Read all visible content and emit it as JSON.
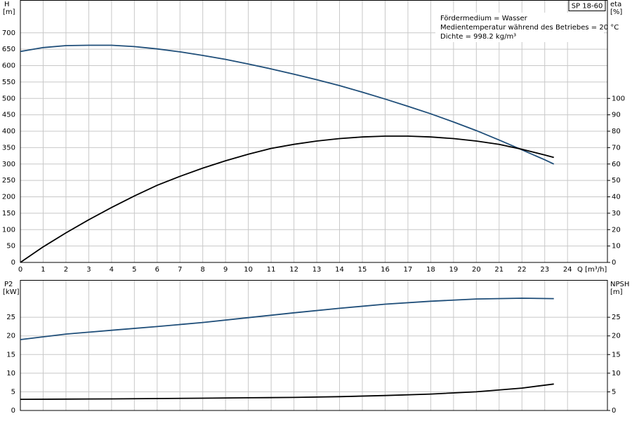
{
  "chart_data": [
    {
      "type": "line",
      "model": "SP 18-60",
      "annotations": [
        "Fördermedium = Wasser",
        "Medientemperatur während des Betriebes = 20 °C",
        "Dichte = 998.2 kg/m³"
      ],
      "xlabel": "Q [m³/h]",
      "ylabel": "H",
      "yunit": "[m]",
      "y2label": "eta",
      "y2unit": "[%]",
      "x": [
        0,
        1,
        2,
        3,
        4,
        5,
        6,
        7,
        8,
        9,
        10,
        11,
        12,
        13,
        14,
        15,
        16,
        17,
        18,
        19,
        20,
        21,
        22,
        23,
        23.4
      ],
      "xlim": [
        0,
        25.75
      ],
      "xticks": [
        0,
        1,
        2,
        3,
        4,
        5,
        6,
        7,
        8,
        9,
        10,
        11,
        12,
        13,
        14,
        15,
        16,
        17,
        18,
        19,
        20,
        21,
        22,
        23,
        24
      ],
      "ylim": [
        0,
        800
      ],
      "yticks": [
        0,
        50,
        100,
        150,
        200,
        250,
        300,
        350,
        400,
        450,
        500,
        550,
        600,
        650,
        700
      ],
      "y2lim": [
        0,
        160
      ],
      "y2ticks": [
        0,
        10,
        20,
        30,
        40,
        50,
        60,
        70,
        80,
        90,
        100
      ],
      "grid": true,
      "series": [
        {
          "color": "#1f4e79",
          "values": [
            643,
            655,
            661,
            662,
            662,
            658,
            651,
            642,
            631,
            619,
            605,
            590,
            574,
            557,
            539,
            519,
            498,
            476,
            453,
            428,
            402,
            373,
            343,
            313,
            300
          ]
        },
        {
          "color": "#000000",
          "axis": "y2",
          "values": [
            0,
            9.5,
            18,
            26,
            33.5,
            40.5,
            47,
            52.5,
            57.5,
            62,
            66,
            69.5,
            72,
            74,
            75.5,
            76.5,
            77,
            77,
            76.5,
            75.5,
            74,
            72,
            69,
            65.5,
            64
          ]
        }
      ]
    },
    {
      "type": "line",
      "ylabel": "P2",
      "yunit": "[kW]",
      "y2label": "NPSH",
      "y2unit": "[m]",
      "x": [
        0,
        2,
        4,
        6,
        8,
        10,
        12,
        14,
        16,
        18,
        20,
        22,
        23.4
      ],
      "xlim": [
        0,
        25.75
      ],
      "xticks": [
        0,
        1,
        2,
        3,
        4,
        5,
        6,
        7,
        8,
        9,
        10,
        11,
        12,
        13,
        14,
        15,
        16,
        17,
        18,
        19,
        20,
        21,
        22,
        23,
        24
      ],
      "ylim": [
        0,
        35
      ],
      "yticks": [
        0,
        5,
        10,
        15,
        20,
        25
      ],
      "y2lim": [
        0,
        35
      ],
      "y2ticks": [
        0,
        5,
        10,
        15,
        20,
        25
      ],
      "grid": true,
      "series": [
        {
          "color": "#1f4e79",
          "values": [
            19,
            20.5,
            21.5,
            22.5,
            23.6,
            24.9,
            26.2,
            27.4,
            28.5,
            29.3,
            29.9,
            30.1,
            30
          ]
        },
        {
          "color": "#000000",
          "axis": "y2",
          "values": [
            3,
            3.05,
            3.1,
            3.2,
            3.3,
            3.4,
            3.5,
            3.7,
            4,
            4.4,
            5,
            6,
            7.1
          ]
        }
      ]
    }
  ]
}
